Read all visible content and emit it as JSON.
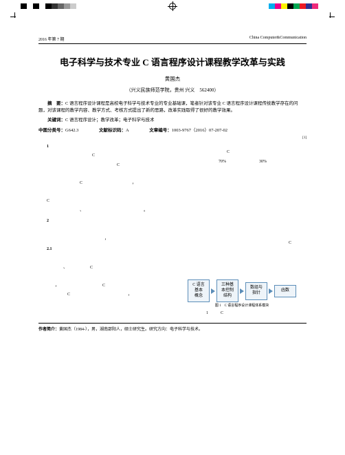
{
  "colorbar": {
    "left": [
      "#000000",
      "#ffffff",
      "#000000",
      "#ffffff",
      "#000000",
      "#333333",
      "#666666",
      "#999999",
      "#cccccc"
    ],
    "right": [
      "#00aeef",
      "#ec008c",
      "#fff200",
      "#000000",
      "#00a651",
      "#ed1c24",
      "#2e3192",
      "#ee2a7b",
      "#ffffff"
    ]
  },
  "header": {
    "issue": "2016 年第 7 期",
    "journal": "China Computer&Communication"
  },
  "title": {
    "text": "电子科学与技术专业 C 语言程序设计课程教学改革与实践",
    "fontsize": 13
  },
  "author": "黄国杰",
  "affiliation": "（兴义民族师范学院，贵州 兴义　562400）",
  "abstract": {
    "label": "摘　要：",
    "text": "C 语言程序设计课程是高校电子科学与技术专业的专业基础课，笔者针对该专业 C 语言程序设计课程传统教学存在的问题，对该课程的教学内容、教学方式、考核方式提出了新的思路，改革实践取得了很好的教学效果。"
  },
  "keywords": {
    "label": "关键词：",
    "text": "C 语言程序设计；教学改革；电子科学与技术"
  },
  "meta": {
    "clc_label": "中图分类号：",
    "clc": "G642.3",
    "doc_label": "文献标识码：",
    "doc": "A",
    "artno_label": "文章编号：",
    "artno": "1003-9767（2016）07-207-02"
  },
  "body": {
    "leftcol": {
      "s1": "1",
      "p1a": "C",
      "p2a": "C",
      "p3a": "C",
      "p3b": "，",
      "p4a": "、",
      "p4b": "。",
      "s2": "2",
      "s21": "2.1",
      "p5a": "、",
      "p5b": "C",
      "p6a": "，",
      "p6b": "C",
      "p7a": "C",
      "p7b": "，"
    },
    "rightcol": {
      "fn": "[1]",
      "p1a": "C",
      "p2a": "70%",
      "p2b": "30%",
      "p6a": "C"
    }
  },
  "diagram": {
    "boxes": [
      "C 语言\n基本\n概念",
      "三种基\n本控制\n结构",
      "数组与\n指针",
      "函数"
    ],
    "caption": "图 1　C 语言程序设计课程体系模块",
    "box_border": "#5b8db8",
    "box_fill": "#eef4f9"
  },
  "figref": {
    "a": "1",
    "b": "C"
  },
  "footer": {
    "label": "作者简介：",
    "text": "黄国杰（1984-），男，湖南邵阳人，硕士研究生。研究方向：电子科学与技术。"
  }
}
